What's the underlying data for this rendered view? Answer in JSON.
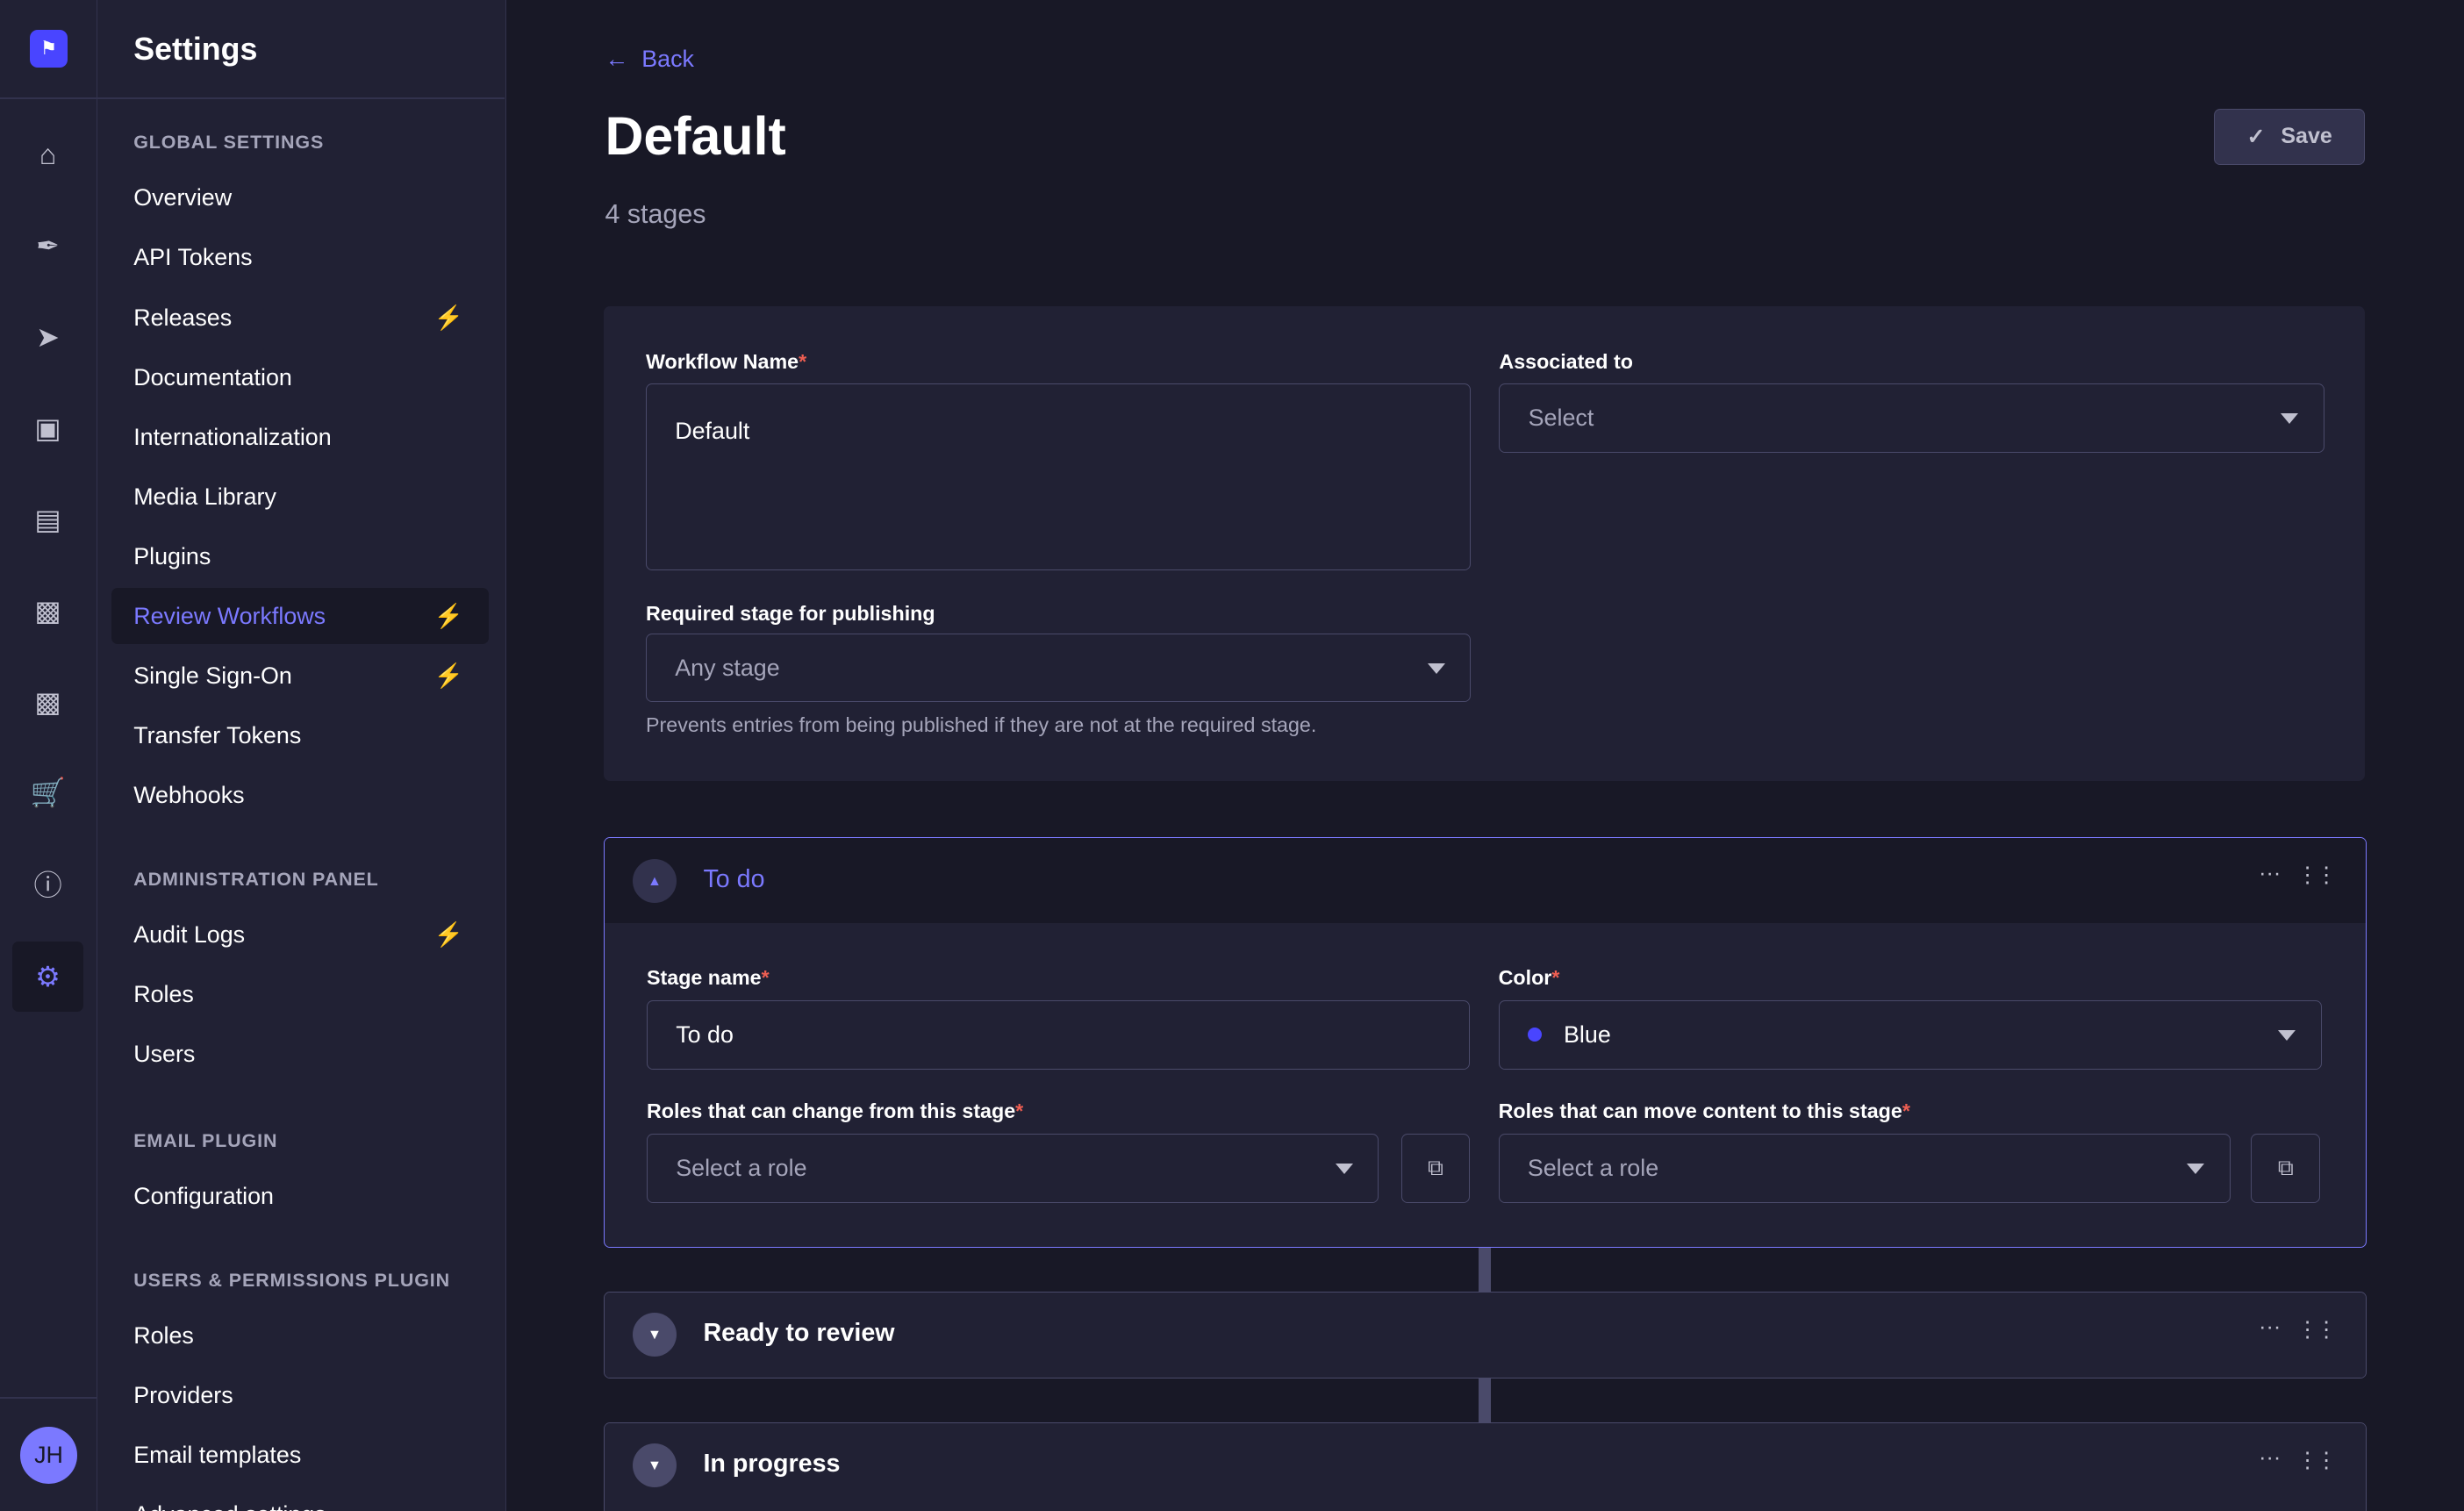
{
  "rail": {
    "icons": [
      "home-icon",
      "feather-icon",
      "paper-plane-icon",
      "images-icon",
      "layout-icon",
      "puzzle-icon",
      "puzzle-icon-2",
      "cart-icon",
      "info-icon",
      "gear-icon"
    ],
    "avatar": "JH",
    "colors": {
      "accent": "#7b79ff",
      "primary": "#4945ff"
    }
  },
  "sidebar": {
    "title": "Settings",
    "sections": [
      {
        "label": "GLOBAL SETTINGS",
        "items": [
          {
            "label": "Overview"
          },
          {
            "label": "API Tokens"
          },
          {
            "label": "Releases",
            "bolt": true
          },
          {
            "label": "Documentation"
          },
          {
            "label": "Internationalization"
          },
          {
            "label": "Media Library"
          },
          {
            "label": "Plugins"
          },
          {
            "label": "Review Workflows",
            "bolt": true,
            "active": true
          },
          {
            "label": "Single Sign-On",
            "bolt": true
          },
          {
            "label": "Transfer Tokens"
          },
          {
            "label": "Webhooks"
          }
        ]
      },
      {
        "label": "ADMINISTRATION PANEL",
        "items": [
          {
            "label": "Audit Logs",
            "bolt": true
          },
          {
            "label": "Roles"
          },
          {
            "label": "Users"
          }
        ]
      },
      {
        "label": "EMAIL PLUGIN",
        "items": [
          {
            "label": "Configuration"
          }
        ]
      },
      {
        "label": "USERS & PERMISSIONS PLUGIN",
        "items": [
          {
            "label": "Roles"
          },
          {
            "label": "Providers"
          },
          {
            "label": "Email templates"
          },
          {
            "label": "Advanced settings"
          }
        ]
      }
    ]
  },
  "header": {
    "back": "Back",
    "title": "Default",
    "subtitle": "4 stages",
    "save": "Save"
  },
  "workflow": {
    "name_label": "Workflow Name",
    "name_value": "Default",
    "assoc_label": "Associated to",
    "assoc_placeholder": "Select",
    "required_label": "Required stage for publishing",
    "required_value": "Any stage",
    "required_hint": "Prevents entries from being published if they are not at the required stage."
  },
  "stages": [
    {
      "name": "To do",
      "expanded": true,
      "stage_name_label": "Stage name",
      "stage_name_value": "To do",
      "color_label": "Color",
      "color_value": "Blue",
      "color_hex": "#4945ff",
      "roles_from_label": "Roles that can change from this stage",
      "roles_from_placeholder": "Select a role",
      "roles_to_label": "Roles that can move content to this stage",
      "roles_to_placeholder": "Select a role"
    },
    {
      "name": "Ready to review",
      "expanded": false
    },
    {
      "name": "In progress",
      "expanded": false
    }
  ]
}
